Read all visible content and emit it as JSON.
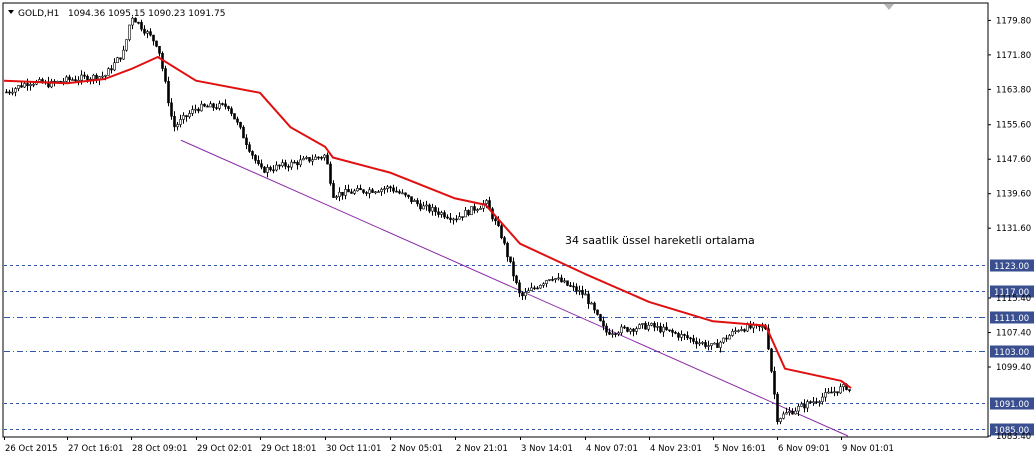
{
  "header": {
    "symbol": "GOLD,H1",
    "ohlc": "1094.36 1095.15 1090.23 1091.75"
  },
  "colors": {
    "candle": "#000000",
    "ema": "#e01010",
    "channel": "#8b2aa8",
    "hline": "#3355aa",
    "price_tag_bg": "#3a4f8f",
    "price_tag_text": "#ffffff"
  },
  "chart_data": {
    "type": "line",
    "title": "",
    "ylim": [
      1083.4,
      1183.6
    ],
    "y_ticks": [
      "1179.80",
      "1171.80",
      "1163.80",
      "1155.60",
      "1147.60",
      "1139.60",
      "1131.60",
      "1123.00",
      "1117.00",
      "1115.40",
      "1111.00",
      "1107.40",
      "1103.00",
      "1099.40",
      "1091.00",
      "1085.00",
      "1083.40"
    ],
    "x_ticks": [
      "26 Oct 2015",
      "27 Oct 16:01",
      "28 Oct 09:01",
      "29 Oct 02:01",
      "29 Oct 18:01",
      "30 Oct 11:01",
      "2 Nov 05:01",
      "2 Nov 21:01",
      "3 Nov 14:01",
      "4 Nov 07:01",
      "4 Nov 23:01",
      "5 Nov 16:01",
      "6 Nov 09:01",
      "9 Nov 01:01"
    ],
    "annotation": "34 saatlik üssel hareketli ortalama",
    "price_series": [
      {
        "date": "26 Oct 2015",
        "value": 1163.0
      },
      {
        "date": "26 Oct 16:01",
        "value": 1165.6
      },
      {
        "date": "27 Oct 05:01",
        "value": 1165.0
      },
      {
        "date": "27 Oct 16:01",
        "value": 1166.0
      },
      {
        "date": "28 Oct 02:01",
        "value": 1167.0
      },
      {
        "date": "28 Oct 07:01",
        "value": 1172.5
      },
      {
        "date": "28 Oct 09:01",
        "value": 1181.0
      },
      {
        "date": "28 Oct 16:01",
        "value": 1174.0
      },
      {
        "date": "28 Oct 20:01",
        "value": 1155.0
      },
      {
        "date": "29 Oct 02:01",
        "value": 1159.5
      },
      {
        "date": "29 Oct 10:01",
        "value": 1160.0
      },
      {
        "date": "29 Oct 18:01",
        "value": 1145.0
      },
      {
        "date": "30 Oct 02:01",
        "value": 1146.5
      },
      {
        "date": "30 Oct 11:01",
        "value": 1148.5
      },
      {
        "date": "30 Oct 19:01",
        "value": 1139.5
      },
      {
        "date": "2 Nov 05:01",
        "value": 1141.0
      },
      {
        "date": "2 Nov 13:01",
        "value": 1136.5
      },
      {
        "date": "2 Nov 21:01",
        "value": 1134.0
      },
      {
        "date": "3 Nov 05:01",
        "value": 1137.5
      },
      {
        "date": "3 Nov 09:01",
        "value": 1130.0
      },
      {
        "date": "3 Nov 14:01",
        "value": 1115.5
      },
      {
        "date": "3 Nov 22:01",
        "value": 1120.5
      },
      {
        "date": "4 Nov 07:01",
        "value": 1116.0
      },
      {
        "date": "4 Nov 12:01",
        "value": 1107.5
      },
      {
        "date": "4 Nov 23:01",
        "value": 1109.0
      },
      {
        "date": "5 Nov 08:01",
        "value": 1106.5
      },
      {
        "date": "5 Nov 16:01",
        "value": 1104.0
      },
      {
        "date": "5 Nov 23:01",
        "value": 1108.5
      },
      {
        "date": "6 Nov 06:01",
        "value": 1108.5
      },
      {
        "date": "6 Nov 09:01",
        "value": 1087.5
      },
      {
        "date": "6 Nov 17:01",
        "value": 1088.5
      },
      {
        "date": "9 Nov 01:01",
        "value": 1094.5
      },
      {
        "date": "9 Nov 08:01",
        "value": 1095.0
      },
      {
        "date": "9 Nov 11:01",
        "value": 1091.75
      }
    ],
    "ema_series": [
      {
        "date": "26 Oct 2015",
        "value": 1165.8
      },
      {
        "date": "27 Oct 16:01",
        "value": 1165.2
      },
      {
        "date": "28 Oct 02:01",
        "value": 1166.2
      },
      {
        "date": "28 Oct 09:01",
        "value": 1168.5
      },
      {
        "date": "28 Oct 16:01",
        "value": 1171.3
      },
      {
        "date": "29 Oct 02:01",
        "value": 1165.8
      },
      {
        "date": "29 Oct 18:01",
        "value": 1163.0
      },
      {
        "date": "30 Oct 02:01",
        "value": 1155.0
      },
      {
        "date": "30 Oct 11:01",
        "value": 1150.5
      },
      {
        "date": "30 Oct 19:01",
        "value": 1148.0
      },
      {
        "date": "2 Nov 05:01",
        "value": 1144.5
      },
      {
        "date": "2 Nov 21:01",
        "value": 1138.5
      },
      {
        "date": "3 Nov 05:01",
        "value": 1137.0
      },
      {
        "date": "3 Nov 14:01",
        "value": 1128.0
      },
      {
        "date": "4 Nov 07:01",
        "value": 1121.0
      },
      {
        "date": "4 Nov 23:01",
        "value": 1114.5
      },
      {
        "date": "5 Nov 16:01",
        "value": 1110.0
      },
      {
        "date": "6 Nov 06:01",
        "value": 1109.0
      },
      {
        "date": "6 Nov 17:01",
        "value": 1099.0
      },
      {
        "date": "9 Nov 01:01",
        "value": 1096.2
      },
      {
        "date": "9 Nov 11:01",
        "value": 1094.5
      }
    ],
    "horizontal_levels": [
      {
        "value": 1123.0,
        "label": "1123.00",
        "style": "dashed"
      },
      {
        "value": 1117.0,
        "label": "1117.00",
        "style": "dashed"
      },
      {
        "value": 1111.0,
        "label": "1111.00",
        "style": "dashdot"
      },
      {
        "value": 1103.0,
        "label": "1103.00",
        "style": "dashdot"
      },
      {
        "value": 1091.0,
        "label": "1091.00",
        "style": "dashed"
      },
      {
        "value": 1085.0,
        "label": "1085.00",
        "style": "dashed"
      }
    ],
    "channel_line": {
      "from_value": 1152.0,
      "to_value": 1083.4
    },
    "grid": false,
    "legend": "none"
  }
}
